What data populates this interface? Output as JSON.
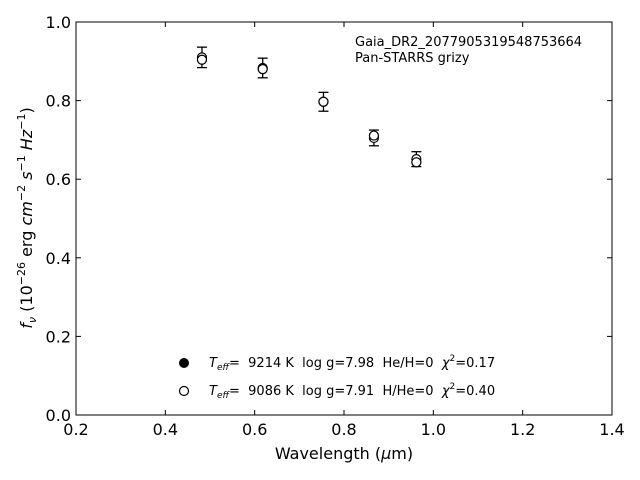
{
  "chart_data": {
    "type": "scatter",
    "annotation": {
      "line1": "Gaia_DR2_2077905319548753664",
      "line2": "Pan-STARRS grizy"
    },
    "xlabel": {
      "pre": "Wavelength (",
      "greek": "μ",
      "post": "m)"
    },
    "ylabel": {
      "f": "f",
      "nu": "ν",
      "open": " (10",
      "exp26": "−26",
      "erg": " erg ",
      "cm": "cm",
      "exp2": "−2",
      "s": " s",
      "exp1a": "−1",
      "hz": " Hz",
      "exp1b": "−1",
      "close": ")"
    },
    "xlim": [
      0.2,
      1.4
    ],
    "ylim": [
      0.0,
      1.0
    ],
    "x_ticks": [
      "0.2",
      "0.4",
      "0.6",
      "0.8",
      "1.0",
      "1.2",
      "1.4"
    ],
    "y_ticks": [
      "0.0",
      "0.2",
      "0.4",
      "0.6",
      "0.8",
      "1.0"
    ],
    "observed": [
      {
        "x": 0.482,
        "y": 0.91,
        "err": 0.026
      },
      {
        "x": 0.618,
        "y": 0.883,
        "err": 0.025
      },
      {
        "x": 0.754,
        "y": 0.797,
        "err": 0.024
      },
      {
        "x": 0.867,
        "y": 0.705,
        "err": 0.02
      },
      {
        "x": 0.962,
        "y": 0.651,
        "err": 0.019
      }
    ],
    "model_hydrogen": [
      {
        "x": 0.482,
        "y": 0.904
      },
      {
        "x": 0.618,
        "y": 0.88
      },
      {
        "x": 0.754,
        "y": 0.797
      },
      {
        "x": 0.867,
        "y": 0.711
      },
      {
        "x": 0.962,
        "y": 0.643
      }
    ],
    "model_helium": [
      {
        "x": 0.482,
        "y": 0.904
      },
      {
        "x": 0.618,
        "y": 0.88
      },
      {
        "x": 0.754,
        "y": 0.797
      },
      {
        "x": 0.867,
        "y": 0.711
      },
      {
        "x": 0.962,
        "y": 0.643
      }
    ],
    "legend": [
      {
        "marker": "filled",
        "T": "T",
        "eff": "eff",
        "rest": "=  9214 K  log g=7.98  He/H=0  ",
        "chi": "χ",
        "sq": "2",
        "chival": "=0.17"
      },
      {
        "marker": "open",
        "T": "T",
        "eff": "eff",
        "rest": "=  9086 K  log g=7.91  H/He=0  ",
        "chi": "χ",
        "sq": "2",
        "chival": "=0.40"
      }
    ],
    "legend_position": "lower-center",
    "grid": false
  }
}
